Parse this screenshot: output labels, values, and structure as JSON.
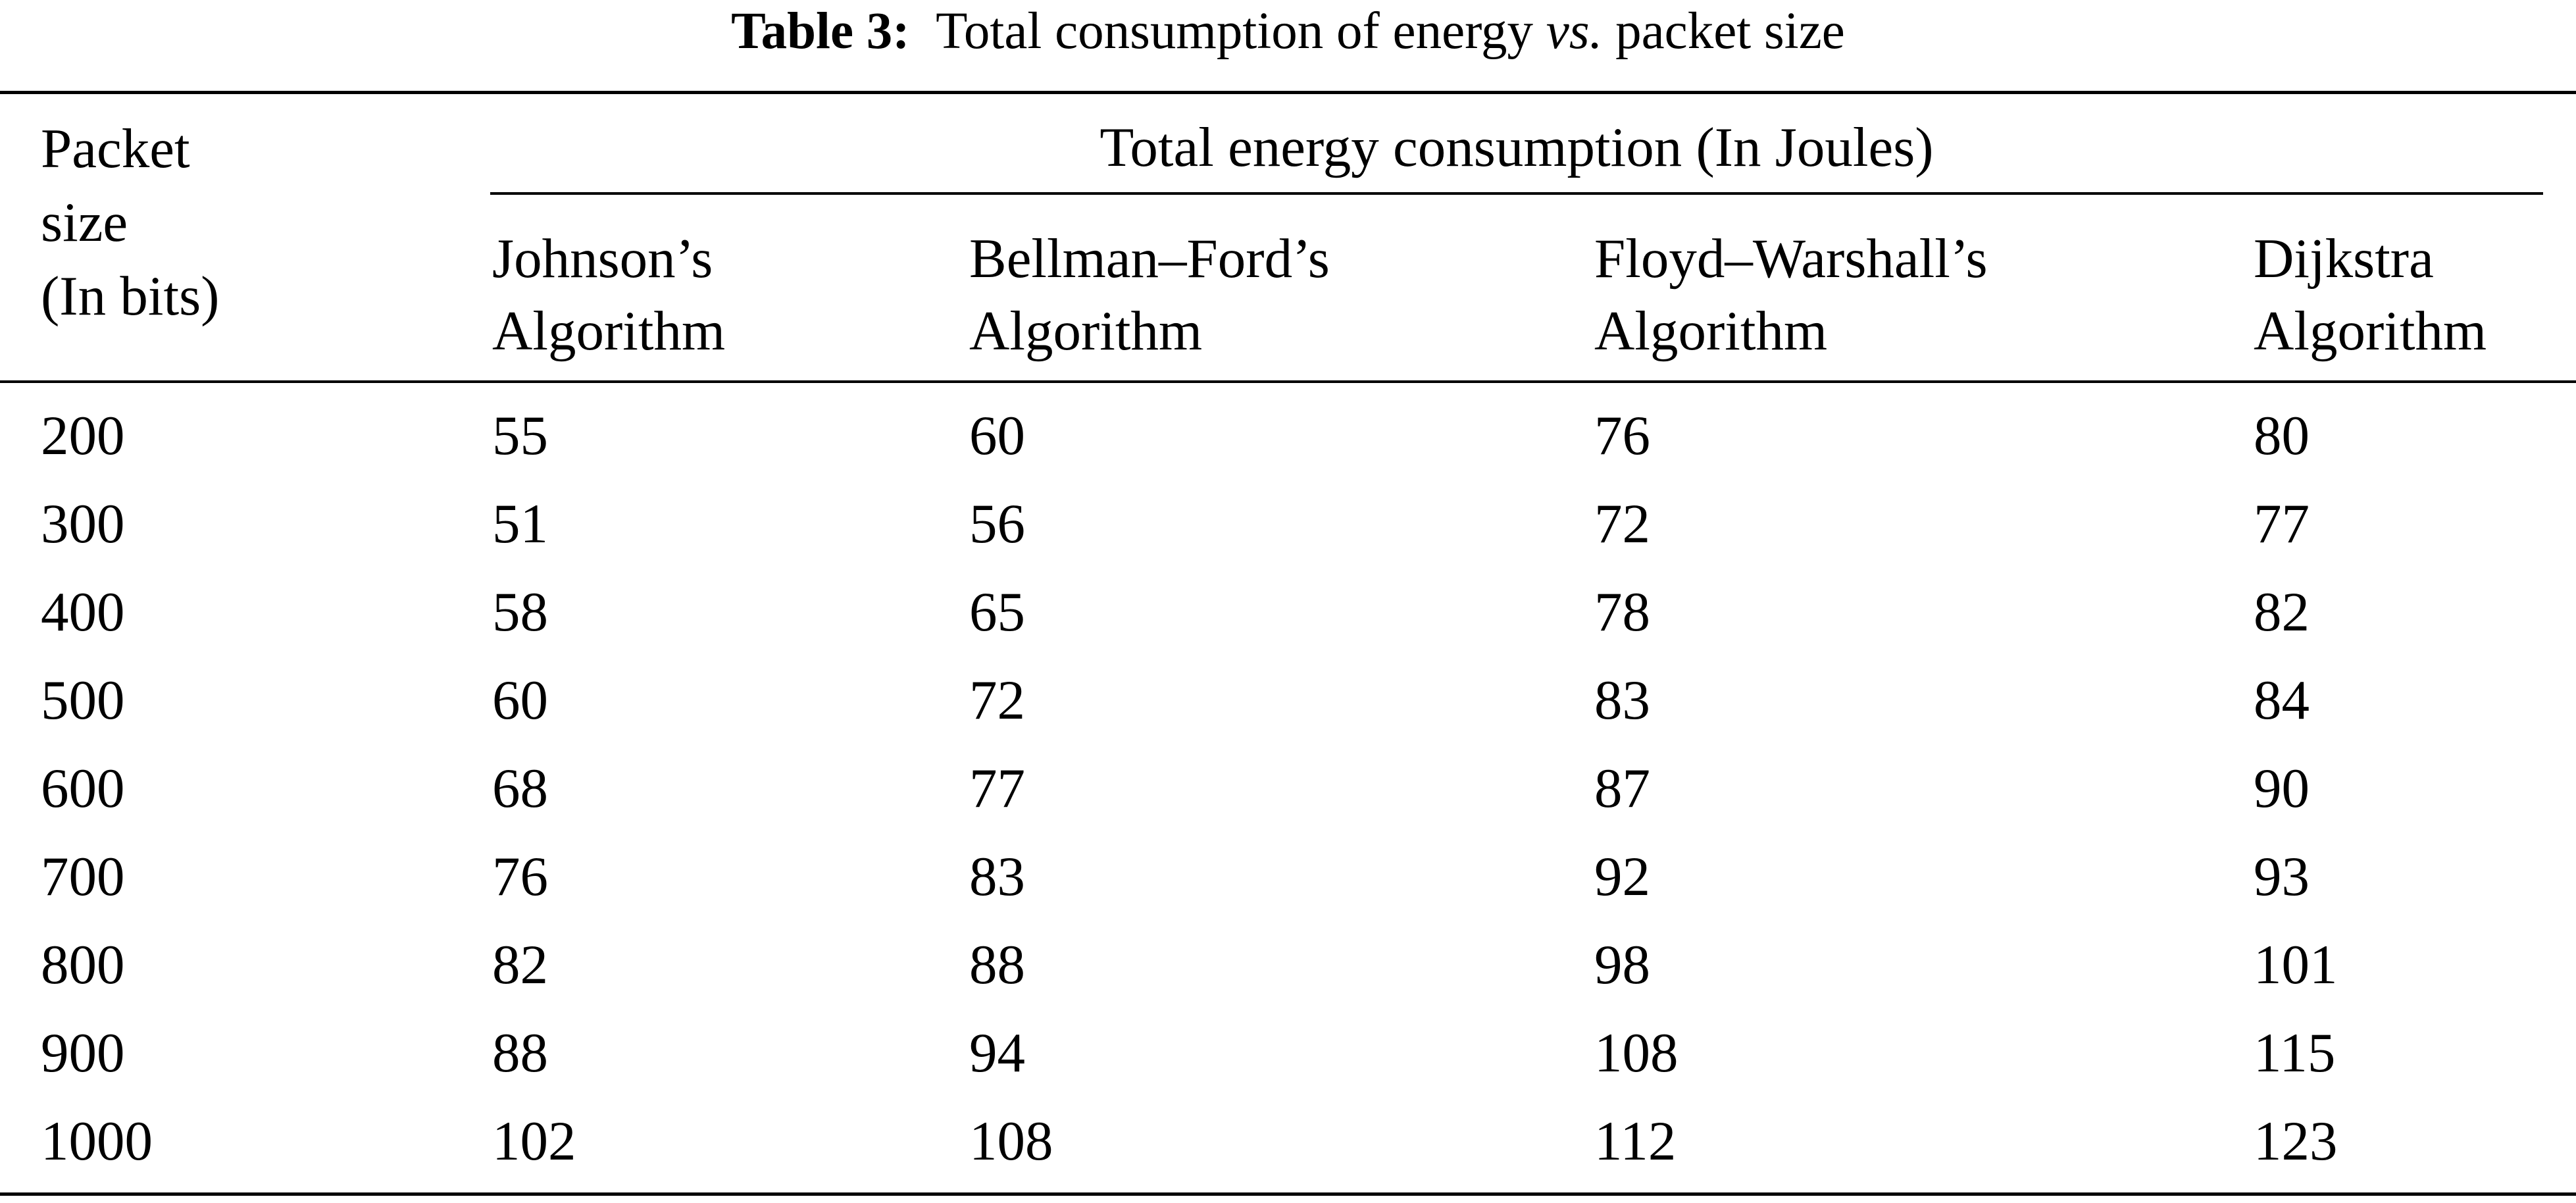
{
  "caption": {
    "label": "Table 3:",
    "text_before": "Total consumption of energy ",
    "text_italic": "vs.",
    "text_after": " packet size"
  },
  "table": {
    "stub_header": [
      "Packet",
      "size",
      "(In bits)"
    ],
    "group_header": "Total energy consumption (In Joules)",
    "columns": [
      [
        "Johnson’s",
        "Algorithm"
      ],
      [
        "Bellman–Ford’s",
        "Algorithm"
      ],
      [
        "Floyd–Warshall’s",
        "Algorithm"
      ],
      [
        "Dijkstra",
        "Algorithm"
      ]
    ],
    "rows": [
      [
        "200",
        "55",
        "60",
        "76",
        "80"
      ],
      [
        "300",
        "51",
        "56",
        "72",
        "77"
      ],
      [
        "400",
        "58",
        "65",
        "78",
        "82"
      ],
      [
        "500",
        "60",
        "72",
        "83",
        "84"
      ],
      [
        "600",
        "68",
        "77",
        "87",
        "90"
      ],
      [
        "700",
        "76",
        "83",
        "92",
        "93"
      ],
      [
        "800",
        "82",
        "88",
        "98",
        "101"
      ],
      [
        "900",
        "88",
        "94",
        "108",
        "115"
      ],
      [
        "1000",
        "102",
        "108",
        "112",
        "123"
      ]
    ]
  }
}
